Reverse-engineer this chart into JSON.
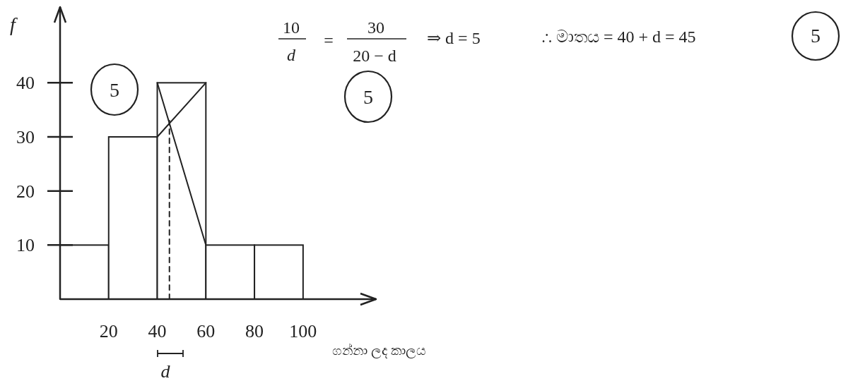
{
  "chart_data": {
    "type": "histogram",
    "bins": [
      0,
      20,
      40,
      60,
      80,
      100
    ],
    "values": [
      10,
      30,
      40,
      10,
      10
    ],
    "color": "#ffffff",
    "series": [
      {
        "type": "line",
        "x": [
          40,
          60
        ],
        "values": [
          30,
          40
        ],
        "color": "#222222"
      },
      {
        "type": "line",
        "x": [
          40,
          60
        ],
        "values": [
          40,
          10
        ],
        "color": "#222222"
      },
      {
        "type": "line",
        "x": [
          45,
          45
        ],
        "values": [
          0,
          33
        ],
        "color": "#222222",
        "line_style": "dashed"
      }
    ],
    "xlim": [
      0,
      130
    ],
    "ylim": [
      0,
      54
    ],
    "xticks": [
      20,
      40,
      60,
      80,
      100
    ],
    "yticks": [
      10,
      20,
      30,
      40
    ],
    "xlabel": "ගන්නා ලද කාලය",
    "ylabel": "f",
    "annotations": [
      "10",
      "d",
      "=",
      "30",
      "20 − d",
      "⇒ d = 5",
      "∴ මාතය = 40 + d = 45",
      "5",
      "5",
      "5",
      "d"
    ]
  }
}
